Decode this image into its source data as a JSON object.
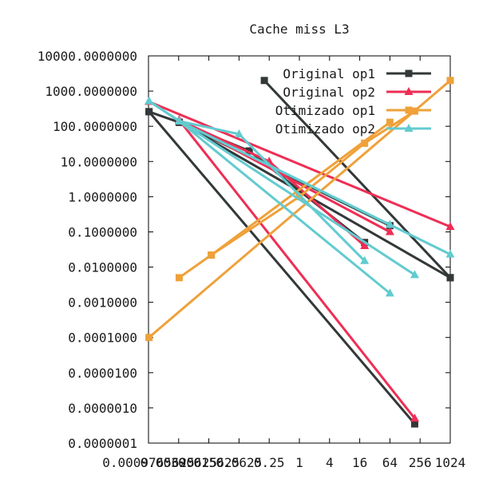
{
  "chart_data": {
    "type": "line",
    "title": "Cache miss L3",
    "xlabel": "",
    "ylabel": "",
    "x_scale": "log2",
    "y_scale": "log10",
    "xlim": [
      0.0009765625,
      1024
    ],
    "ylim": [
      1e-07,
      10000
    ],
    "x_ticks": [
      {
        "v": 0.0009765625,
        "label": "0.0009765625"
      },
      {
        "v": 0.00390625,
        "label": "0.00390625"
      },
      {
        "v": 0.015625,
        "label": "0.015625"
      },
      {
        "v": 0.0625,
        "label": "0.0625"
      },
      {
        "v": 0.25,
        "label": "0.25"
      },
      {
        "v": 1,
        "label": "1"
      },
      {
        "v": 4,
        "label": "4"
      },
      {
        "v": 16,
        "label": "16"
      },
      {
        "v": 64,
        "label": "64"
      },
      {
        "v": 256,
        "label": "256"
      },
      {
        "v": 1024,
        "label": "1024"
      }
    ],
    "y_ticks": [
      {
        "v": 1e-07,
        "label": "0.0000001"
      },
      {
        "v": 1e-06,
        "label": "0.0000010"
      },
      {
        "v": 1e-05,
        "label": "0.0000100"
      },
      {
        "v": 0.0001,
        "label": "0.0001000"
      },
      {
        "v": 0.001,
        "label": "0.0010000"
      },
      {
        "v": 0.01,
        "label": "0.0100000"
      },
      {
        "v": 0.1,
        "label": "0.1000000"
      },
      {
        "v": 1,
        "label": "1.0000000"
      },
      {
        "v": 10,
        "label": "10.0000000"
      },
      {
        "v": 100,
        "label": "100.0000000"
      },
      {
        "v": 1000,
        "label": "1000.0000000"
      },
      {
        "v": 10000,
        "label": "10000.0000000"
      }
    ],
    "grid": false,
    "legend_position": "top-right",
    "series": [
      {
        "name": "Original op1",
        "color": "#333838",
        "marker": "square",
        "segments": [
          [
            [
              0.001,
              260
            ],
            [
              0.004,
              130
            ],
            [
              0.1,
              20
            ],
            [
              20,
              0.05
            ]
          ],
          [
            [
              0.001,
              260
            ],
            [
              200,
              3.5e-07
            ]
          ],
          [
            [
              0.004,
              130
            ],
            [
              64,
              0.15
            ]
          ],
          [
            [
              0.004,
              130
            ],
            [
              1024,
              0.005
            ]
          ],
          [
            [
              0.2,
              2000
            ],
            [
              1024,
              0.005
            ]
          ]
        ]
      },
      {
        "name": "Original op2",
        "color": "#ee2e55",
        "marker": "triangle",
        "segments": [
          [
            [
              0.004,
              150
            ],
            [
              0.25,
              10
            ],
            [
              20,
              0.04
            ]
          ],
          [
            [
              0.004,
              150
            ],
            [
              64,
              0.1
            ]
          ],
          [
            [
              0.004,
              150
            ],
            [
              200,
              5e-07
            ]
          ],
          [
            [
              0.001,
              500
            ],
            [
              1024,
              0.14
            ]
          ]
        ]
      },
      {
        "name": "Otimizado op1",
        "color": "#efa13a",
        "marker": "square",
        "segments": [
          [
            [
              0.004,
              0.005
            ],
            [
              0.0175,
              0.022
            ],
            [
              1,
              1
            ],
            [
              20,
              33
            ],
            [
              200,
              270
            ]
          ],
          [
            [
              0.0175,
              0.022
            ],
            [
              64,
              130
            ]
          ],
          [
            [
              0.001,
              0.0001
            ],
            [
              1024,
              2000
            ]
          ]
        ]
      },
      {
        "name": "Otimizado op2",
        "color": "#62cbd0",
        "marker": "triangle",
        "segments": [
          [
            [
              0.001,
              520
            ],
            [
              0.004,
              140
            ],
            [
              0.0625,
              60
            ],
            [
              20,
              0.015
            ]
          ],
          [
            [
              0.001,
              520
            ],
            [
              200,
              0.006
            ]
          ],
          [
            [
              0.004,
              140
            ],
            [
              64,
              0.0018
            ]
          ],
          [
            [
              0.004,
              140
            ],
            [
              64,
              0.16
            ]
          ],
          [
            [
              0.004,
              140
            ],
            [
              1024,
              0.023
            ]
          ]
        ]
      }
    ]
  }
}
